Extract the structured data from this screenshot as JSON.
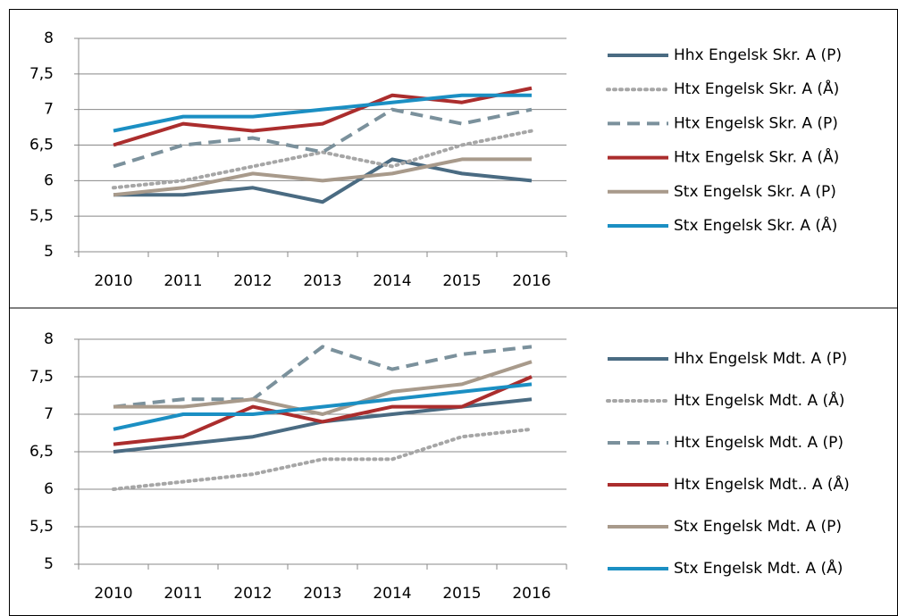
{
  "chart_data": [
    {
      "type": "line",
      "categories": [
        "2010",
        "2011",
        "2012",
        "2013",
        "2014",
        "2015",
        "2016"
      ],
      "ylim": [
        5,
        8
      ],
      "yticks": [
        5,
        {
          "value": 5.5,
          "label": "5,5"
        },
        6,
        {
          "value": 6.5,
          "label": "6,5"
        },
        7,
        {
          "value": 7.5,
          "label": "7,5"
        },
        8
      ],
      "grid": true,
      "legend": "right",
      "series": [
        {
          "name": "Hhx Engelsk Skr. A (P)",
          "color": "#4a6b82",
          "dash": "solid",
          "values": [
            5.8,
            5.8,
            5.9,
            5.7,
            6.3,
            6.1,
            6.0
          ]
        },
        {
          "name": "Htx Engelsk Skr. A (Å)",
          "color": "#a6a6a6",
          "dash": "dotted",
          "values": [
            5.9,
            6.0,
            6.2,
            6.4,
            6.2,
            6.5,
            6.7
          ]
        },
        {
          "name": "Htx Engelsk Skr. A (P)",
          "color": "#7b919c",
          "dash": "dashed",
          "values": [
            6.2,
            6.5,
            6.6,
            6.4,
            7.0,
            6.8,
            7.0
          ]
        },
        {
          "name": "Htx Engelsk Skr. A (Å)",
          "color": "#ab2d2d",
          "dash": "solid",
          "values": [
            6.5,
            6.8,
            6.7,
            6.8,
            7.2,
            7.1,
            7.3
          ]
        },
        {
          "name": "Stx Engelsk Skr. A (P)",
          "color": "#a89a8b",
          "dash": "solid",
          "values": [
            5.8,
            5.9,
            6.1,
            6.0,
            6.1,
            6.3,
            6.3
          ]
        },
        {
          "name": "Stx Engelsk Skr. A (Å)",
          "color": "#1b8fc3",
          "dash": "solid",
          "values": [
            6.7,
            6.9,
            6.9,
            7.0,
            7.1,
            7.2,
            7.2
          ]
        }
      ]
    },
    {
      "type": "line",
      "categories": [
        "2010",
        "2011",
        "2012",
        "2013",
        "2014",
        "2015",
        "2016"
      ],
      "ylim": [
        5,
        8
      ],
      "yticks": [
        5,
        {
          "value": 5.5,
          "label": "5,5"
        },
        6,
        {
          "value": 6.5,
          "label": "6,5"
        },
        7,
        {
          "value": 7.5,
          "label": "7,5"
        },
        8
      ],
      "grid": true,
      "legend": "right",
      "series": [
        {
          "name": "Hhx Engelsk Mdt. A (P)",
          "color": "#4a6b82",
          "dash": "solid",
          "values": [
            6.5,
            6.6,
            6.7,
            6.9,
            7.0,
            7.1,
            7.2
          ]
        },
        {
          "name": "Htx Engelsk Mdt. A (Å)",
          "color": "#a6a6a6",
          "dash": "dotted",
          "values": [
            6.0,
            6.1,
            6.2,
            6.4,
            6.4,
            6.7,
            6.8
          ]
        },
        {
          "name": "Htx Engelsk Mdt. A (P)",
          "color": "#7b919c",
          "dash": "dashed",
          "values": [
            7.1,
            7.2,
            7.2,
            7.9,
            7.6,
            7.8,
            7.9
          ]
        },
        {
          "name": "Htx Engelsk Mdt.. A (Å)",
          "color": "#ab2d2d",
          "dash": "solid",
          "values": [
            6.6,
            6.7,
            7.1,
            6.9,
            7.1,
            7.1,
            7.5
          ]
        },
        {
          "name": "Stx Engelsk Mdt. A (P)",
          "color": "#a89a8b",
          "dash": "solid",
          "values": [
            7.1,
            7.1,
            7.2,
            7.0,
            7.3,
            7.4,
            7.7
          ]
        },
        {
          "name": "Stx Engelsk Mdt. A (Å)",
          "color": "#1b8fc3",
          "dash": "solid",
          "values": [
            6.8,
            7.0,
            7.0,
            7.1,
            7.2,
            7.3,
            7.4
          ]
        }
      ]
    }
  ]
}
